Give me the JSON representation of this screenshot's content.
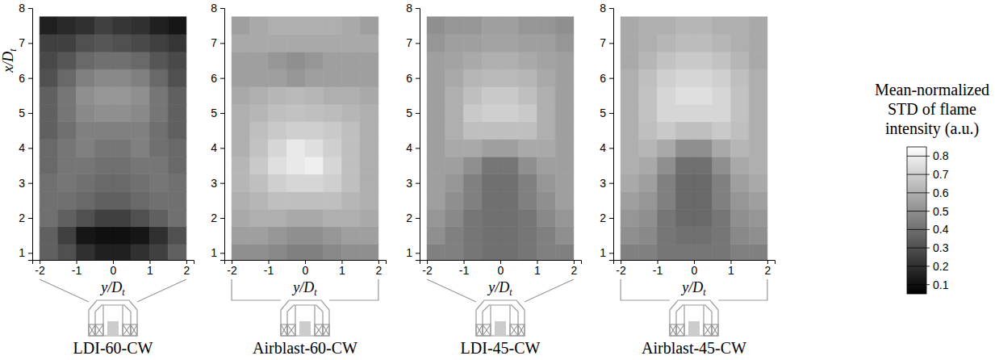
{
  "chart_data": [
    {
      "type": "heatmap",
      "title": "LDI-60-CW",
      "xlabel": {
        "text": "y/D",
        "subscript": "t"
      },
      "ylabel": {
        "text": "x/D",
        "subscript": "t"
      },
      "xlim": [
        -2.2,
        2.2
      ],
      "xticks": [
        -2,
        -1,
        0,
        1,
        2
      ],
      "ylim": [
        0.8,
        8
      ],
      "yticks": [
        1,
        2,
        3,
        4,
        5,
        6,
        7,
        8
      ],
      "x": [
        -1.75,
        -1.25,
        -0.75,
        -0.25,
        0.25,
        0.75,
        1.25,
        1.75
      ],
      "y": [
        1.0,
        1.5,
        2.0,
        2.5,
        3.0,
        3.5,
        4.0,
        4.5,
        5.0,
        5.5,
        6.0,
        6.5,
        7.0,
        7.5
      ],
      "values": [
        [
          0.35,
          0.3,
          0.2,
          0.15,
          0.15,
          0.2,
          0.25,
          0.35
        ],
        [
          0.35,
          0.25,
          0.12,
          0.1,
          0.1,
          0.12,
          0.2,
          0.3
        ],
        [
          0.4,
          0.35,
          0.3,
          0.25,
          0.25,
          0.3,
          0.35,
          0.4
        ],
        [
          0.4,
          0.4,
          0.38,
          0.35,
          0.35,
          0.38,
          0.4,
          0.4
        ],
        [
          0.4,
          0.42,
          0.4,
          0.38,
          0.38,
          0.4,
          0.42,
          0.4
        ],
        [
          0.38,
          0.42,
          0.42,
          0.4,
          0.4,
          0.42,
          0.42,
          0.38
        ],
        [
          0.38,
          0.42,
          0.45,
          0.42,
          0.42,
          0.45,
          0.4,
          0.38
        ],
        [
          0.35,
          0.4,
          0.45,
          0.45,
          0.45,
          0.45,
          0.4,
          0.35
        ],
        [
          0.35,
          0.42,
          0.48,
          0.5,
          0.5,
          0.48,
          0.42,
          0.35
        ],
        [
          0.35,
          0.42,
          0.5,
          0.52,
          0.52,
          0.5,
          0.42,
          0.35
        ],
        [
          0.3,
          0.38,
          0.45,
          0.48,
          0.48,
          0.45,
          0.38,
          0.3
        ],
        [
          0.28,
          0.32,
          0.38,
          0.4,
          0.4,
          0.38,
          0.32,
          0.28
        ],
        [
          0.25,
          0.25,
          0.3,
          0.32,
          0.3,
          0.28,
          0.25,
          0.22
        ],
        [
          0.15,
          0.18,
          0.2,
          0.25,
          0.22,
          0.2,
          0.15,
          0.12
        ]
      ]
    },
    {
      "type": "heatmap",
      "title": "Airblast-60-CW",
      "xlabel": {
        "text": "y/D",
        "subscript": "t"
      },
      "xlim": [
        -2.2,
        2.2
      ],
      "xticks": [
        -2,
        -1,
        0,
        1,
        2
      ],
      "ylim": [
        0.8,
        8
      ],
      "yticks": [
        1,
        2,
        3,
        4,
        5,
        6,
        7,
        8
      ],
      "x": [
        -1.75,
        -1.25,
        -0.75,
        -0.25,
        0.25,
        0.75,
        1.25,
        1.75
      ],
      "y": [
        1.0,
        1.5,
        2.0,
        2.5,
        3.0,
        3.5,
        4.0,
        4.5,
        5.0,
        5.5,
        6.0,
        6.5,
        7.0,
        7.5
      ],
      "values": [
        [
          0.5,
          0.5,
          0.48,
          0.45,
          0.45,
          0.48,
          0.5,
          0.5
        ],
        [
          0.55,
          0.55,
          0.52,
          0.5,
          0.5,
          0.52,
          0.55,
          0.55
        ],
        [
          0.58,
          0.6,
          0.6,
          0.58,
          0.58,
          0.6,
          0.6,
          0.58
        ],
        [
          0.6,
          0.62,
          0.65,
          0.65,
          0.65,
          0.65,
          0.62,
          0.6
        ],
        [
          0.62,
          0.65,
          0.7,
          0.72,
          0.72,
          0.7,
          0.65,
          0.6
        ],
        [
          0.62,
          0.68,
          0.75,
          0.78,
          0.8,
          0.72,
          0.65,
          0.6
        ],
        [
          0.6,
          0.66,
          0.72,
          0.78,
          0.75,
          0.7,
          0.65,
          0.6
        ],
        [
          0.6,
          0.65,
          0.68,
          0.7,
          0.7,
          0.68,
          0.65,
          0.6
        ],
        [
          0.6,
          0.62,
          0.65,
          0.66,
          0.65,
          0.64,
          0.62,
          0.6
        ],
        [
          0.58,
          0.6,
          0.62,
          0.63,
          0.62,
          0.6,
          0.6,
          0.58
        ],
        [
          0.55,
          0.55,
          0.55,
          0.52,
          0.55,
          0.55,
          0.55,
          0.55
        ],
        [
          0.55,
          0.55,
          0.52,
          0.5,
          0.52,
          0.55,
          0.55,
          0.55
        ],
        [
          0.58,
          0.58,
          0.58,
          0.58,
          0.58,
          0.58,
          0.58,
          0.58
        ],
        [
          0.55,
          0.58,
          0.6,
          0.6,
          0.6,
          0.6,
          0.58,
          0.55
        ]
      ]
    },
    {
      "type": "heatmap",
      "title": "LDI-45-CW",
      "xlabel": {
        "text": "y/D",
        "subscript": "t"
      },
      "xlim": [
        -2.2,
        2.2
      ],
      "xticks": [
        -2,
        -1,
        0,
        1,
        2
      ],
      "ylim": [
        0.8,
        8
      ],
      "yticks": [
        1,
        2,
        3,
        4,
        5,
        6,
        7,
        8
      ],
      "x": [
        -1.75,
        -1.25,
        -0.75,
        -0.25,
        0.25,
        0.75,
        1.25,
        1.75
      ],
      "y": [
        1.0,
        1.5,
        2.0,
        2.5,
        3.0,
        3.5,
        4.0,
        4.5,
        5.0,
        5.5,
        6.0,
        6.5,
        7.0,
        7.5
      ],
      "values": [
        [
          0.45,
          0.45,
          0.42,
          0.4,
          0.4,
          0.42,
          0.45,
          0.45
        ],
        [
          0.5,
          0.45,
          0.42,
          0.4,
          0.4,
          0.42,
          0.45,
          0.5
        ],
        [
          0.52,
          0.48,
          0.42,
          0.4,
          0.4,
          0.42,
          0.48,
          0.52
        ],
        [
          0.55,
          0.5,
          0.45,
          0.4,
          0.4,
          0.45,
          0.5,
          0.55
        ],
        [
          0.55,
          0.52,
          0.45,
          0.4,
          0.4,
          0.45,
          0.52,
          0.55
        ],
        [
          0.55,
          0.55,
          0.5,
          0.42,
          0.42,
          0.5,
          0.55,
          0.55
        ],
        [
          0.55,
          0.58,
          0.58,
          0.55,
          0.55,
          0.58,
          0.58,
          0.55
        ],
        [
          0.55,
          0.6,
          0.65,
          0.65,
          0.65,
          0.65,
          0.6,
          0.55
        ],
        [
          0.55,
          0.6,
          0.68,
          0.7,
          0.7,
          0.68,
          0.6,
          0.55
        ],
        [
          0.55,
          0.6,
          0.65,
          0.68,
          0.68,
          0.65,
          0.6,
          0.55
        ],
        [
          0.55,
          0.58,
          0.62,
          0.63,
          0.63,
          0.62,
          0.58,
          0.55
        ],
        [
          0.55,
          0.56,
          0.58,
          0.6,
          0.6,
          0.58,
          0.56,
          0.55
        ],
        [
          0.52,
          0.55,
          0.55,
          0.56,
          0.56,
          0.55,
          0.55,
          0.52
        ],
        [
          0.5,
          0.52,
          0.52,
          0.55,
          0.55,
          0.52,
          0.52,
          0.5
        ]
      ]
    },
    {
      "type": "heatmap",
      "title": "Airblast-45-CW",
      "xlabel": {
        "text": "y/D",
        "subscript": "t"
      },
      "xlim": [
        -2.2,
        2.2
      ],
      "xticks": [
        -2,
        -1,
        0,
        1,
        2
      ],
      "ylim": [
        0.8,
        8
      ],
      "yticks": [
        1,
        2,
        3,
        4,
        5,
        6,
        7,
        8
      ],
      "x": [
        -1.75,
        -1.25,
        -0.75,
        -0.25,
        0.25,
        0.75,
        1.25,
        1.75
      ],
      "y": [
        1.0,
        1.5,
        2.0,
        2.5,
        3.0,
        3.5,
        4.0,
        4.5,
        5.0,
        5.5,
        6.0,
        6.5,
        7.0,
        7.5
      ],
      "values": [
        [
          0.45,
          0.45,
          0.42,
          0.42,
          0.42,
          0.42,
          0.45,
          0.45
        ],
        [
          0.5,
          0.48,
          0.42,
          0.4,
          0.4,
          0.42,
          0.48,
          0.5
        ],
        [
          0.52,
          0.5,
          0.42,
          0.38,
          0.38,
          0.42,
          0.5,
          0.52
        ],
        [
          0.55,
          0.52,
          0.45,
          0.38,
          0.38,
          0.45,
          0.52,
          0.55
        ],
        [
          0.58,
          0.55,
          0.45,
          0.38,
          0.38,
          0.45,
          0.55,
          0.58
        ],
        [
          0.6,
          0.58,
          0.5,
          0.4,
          0.4,
          0.5,
          0.58,
          0.6
        ],
        [
          0.6,
          0.62,
          0.58,
          0.5,
          0.5,
          0.58,
          0.62,
          0.6
        ],
        [
          0.6,
          0.65,
          0.68,
          0.65,
          0.65,
          0.68,
          0.65,
          0.6
        ],
        [
          0.6,
          0.66,
          0.72,
          0.72,
          0.72,
          0.72,
          0.66,
          0.6
        ],
        [
          0.6,
          0.66,
          0.72,
          0.75,
          0.75,
          0.72,
          0.66,
          0.6
        ],
        [
          0.6,
          0.65,
          0.7,
          0.72,
          0.72,
          0.7,
          0.65,
          0.6
        ],
        [
          0.58,
          0.62,
          0.66,
          0.68,
          0.68,
          0.66,
          0.62,
          0.58
        ],
        [
          0.58,
          0.6,
          0.62,
          0.64,
          0.64,
          0.62,
          0.6,
          0.58
        ],
        [
          0.58,
          0.6,
          0.6,
          0.62,
          0.62,
          0.6,
          0.6,
          0.58
        ]
      ]
    }
  ],
  "colorbar": {
    "title": "Mean-normalized STD of flame intensity (a.u.)",
    "range": [
      0.05,
      0.85
    ],
    "ticks": [
      0.1,
      0.2,
      0.3,
      0.4,
      0.5,
      0.6,
      0.7,
      0.8
    ]
  }
}
